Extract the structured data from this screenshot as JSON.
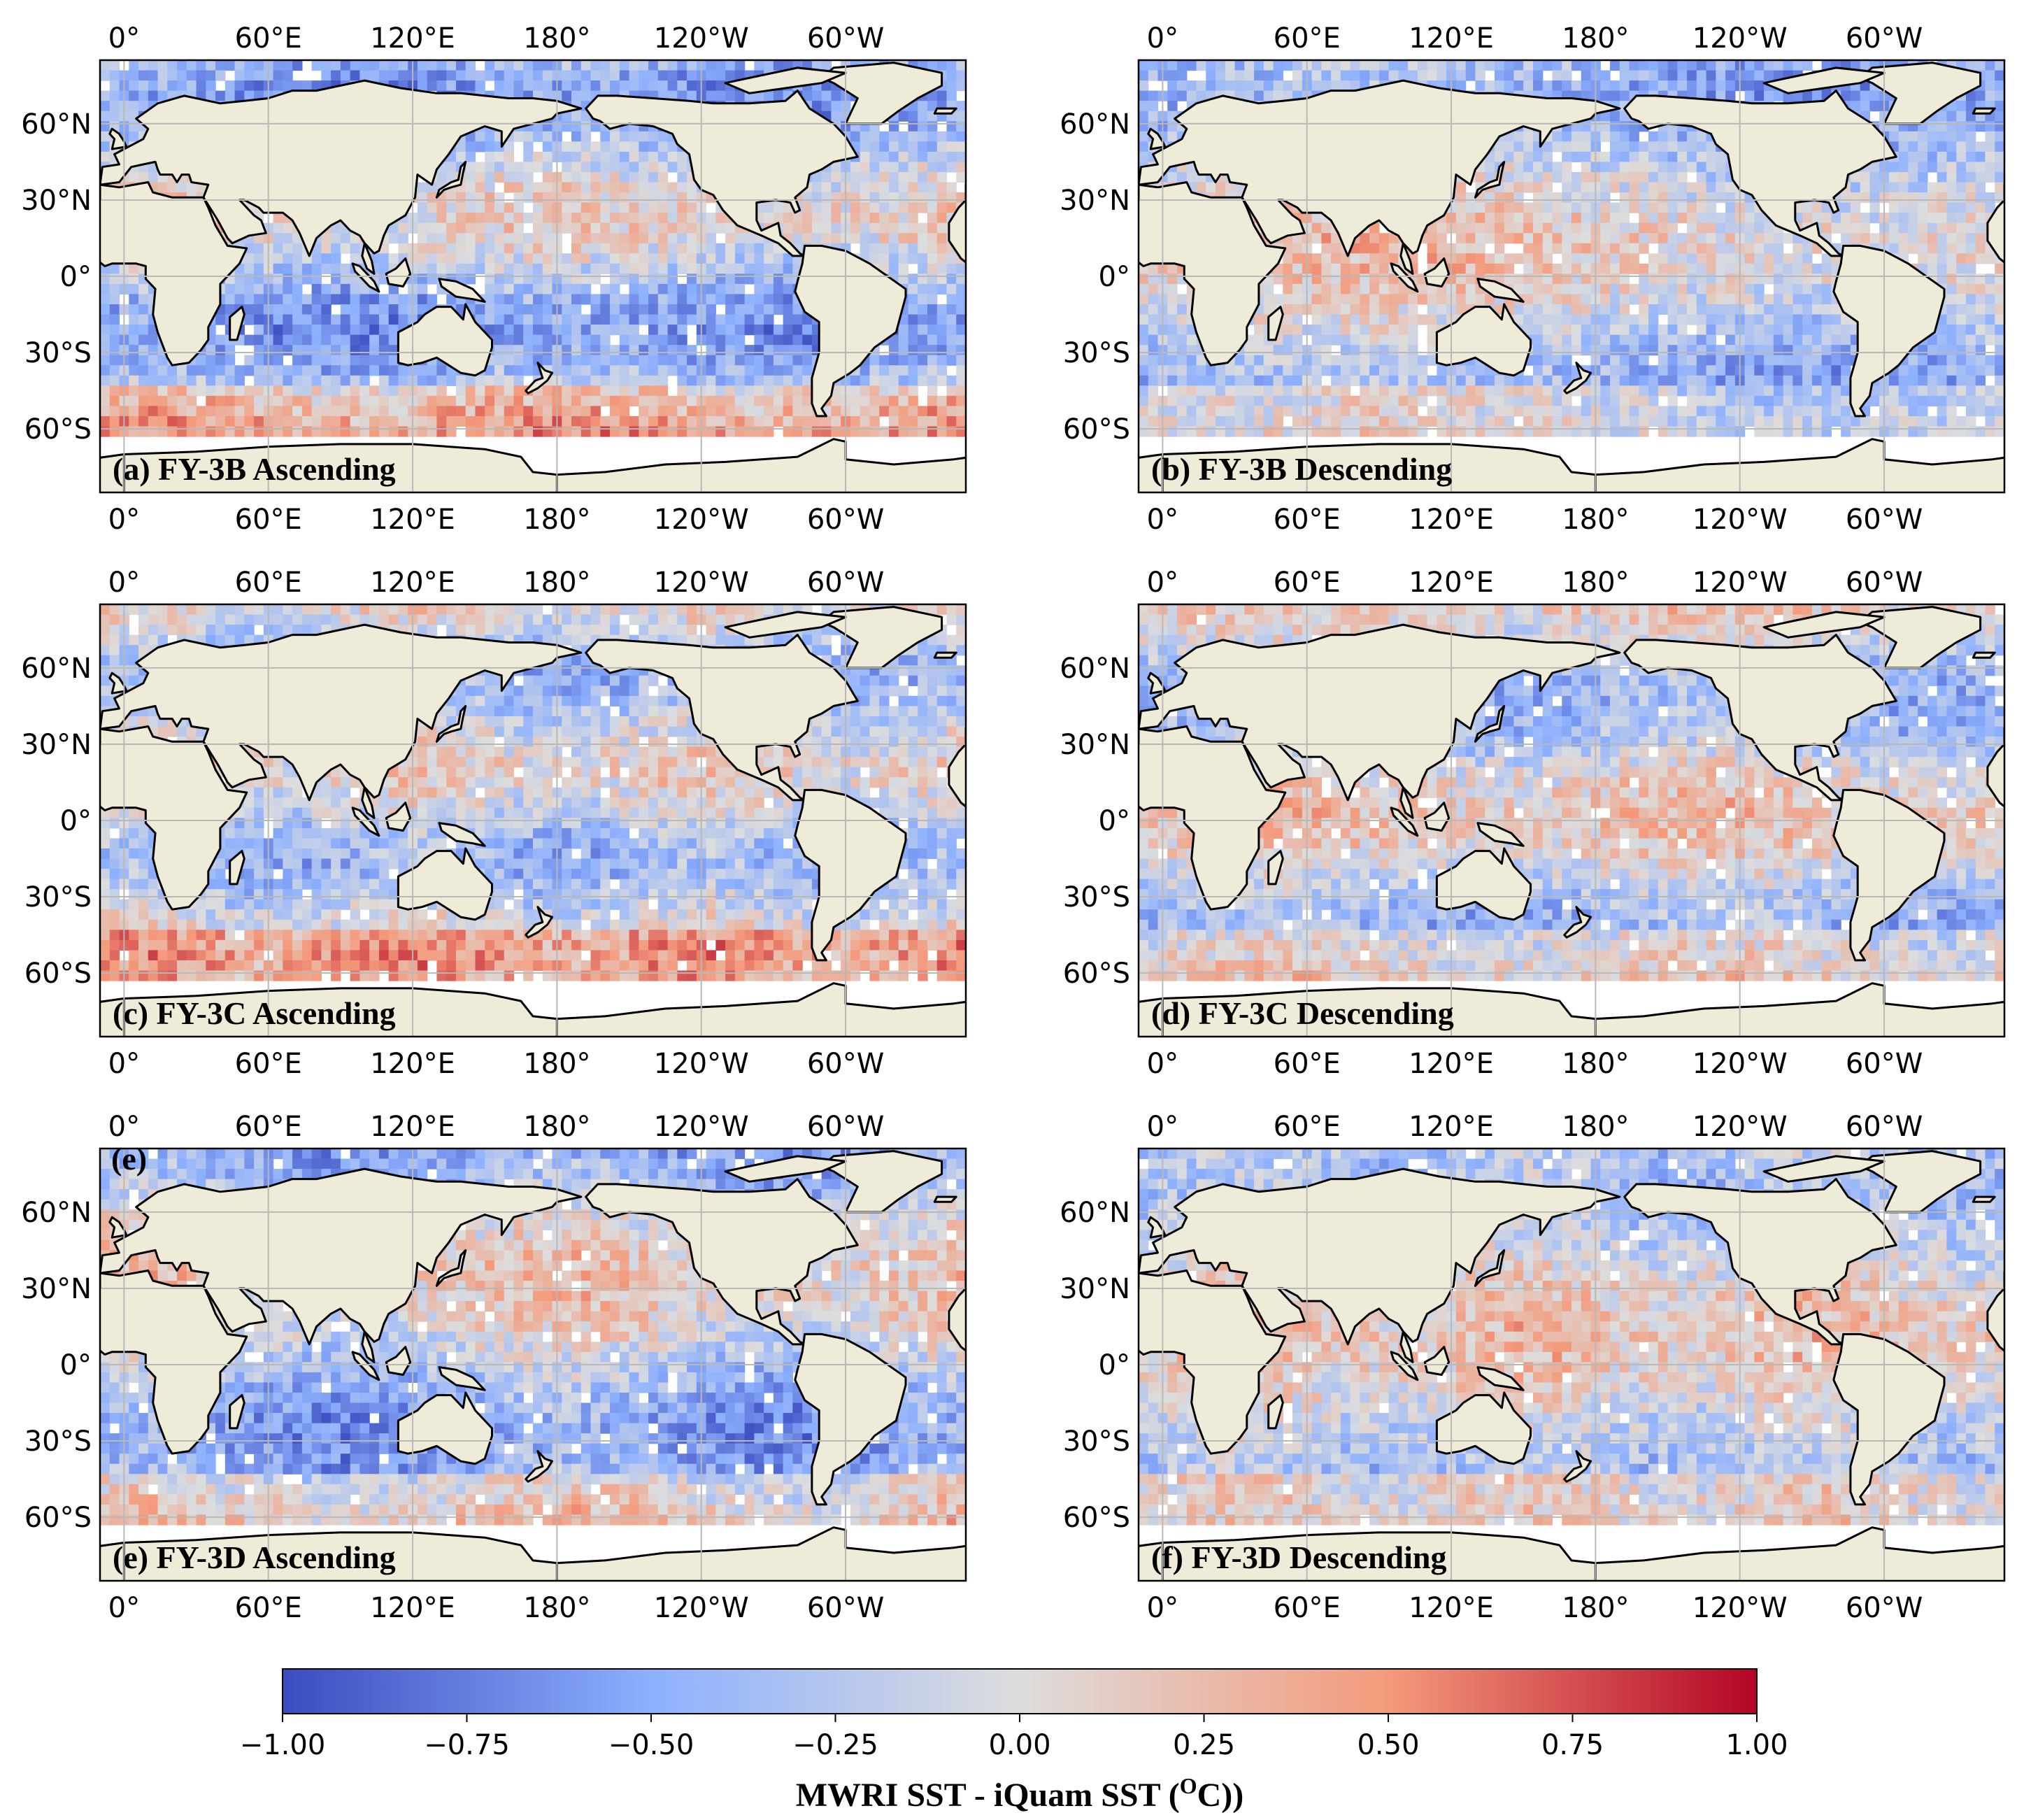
{
  "panels": [
    {
      "id": "a",
      "label": "(a) FY-3B Ascending",
      "extra_label": ""
    },
    {
      "id": "b",
      "label": "(b) FY-3B Descending",
      "extra_label": ""
    },
    {
      "id": "c",
      "label": "(c) FY-3C Ascending",
      "extra_label": ""
    },
    {
      "id": "d",
      "label": "(d) FY-3C Descending",
      "extra_label": ""
    },
    {
      "id": "e",
      "label": "(e) FY-3D Ascending",
      "extra_label": "(e)"
    },
    {
      "id": "f",
      "label": "(f) FY-3D Descending",
      "extra_label": ""
    }
  ],
  "axes": {
    "lon_ticks": [
      "0°",
      "60°E",
      "120°E",
      "180°",
      "120°W",
      "60°W"
    ],
    "lat_ticks": [
      "60°N",
      "30°N",
      "0°",
      "30°S",
      "60°S"
    ]
  },
  "colorbar": {
    "ticks": [
      "−1.00",
      "−0.75",
      "−0.50",
      "−0.25",
      "0.00",
      "0.25",
      "0.50",
      "0.75",
      "1.00"
    ],
    "title_main": "MWRI SST - iQuam SST (",
    "title_sup": "O",
    "title_end": "C))",
    "range": [
      -1.0,
      1.0
    ],
    "colormap": "coolwarm",
    "colors": [
      "#3b4cc0",
      "#8db0fe",
      "#dddddd",
      "#f49a7b",
      "#b40426"
    ]
  },
  "map_style": {
    "land_color": "#efebd9",
    "coast_color": "#000000",
    "grid_color": "#b8b8b8"
  }
}
